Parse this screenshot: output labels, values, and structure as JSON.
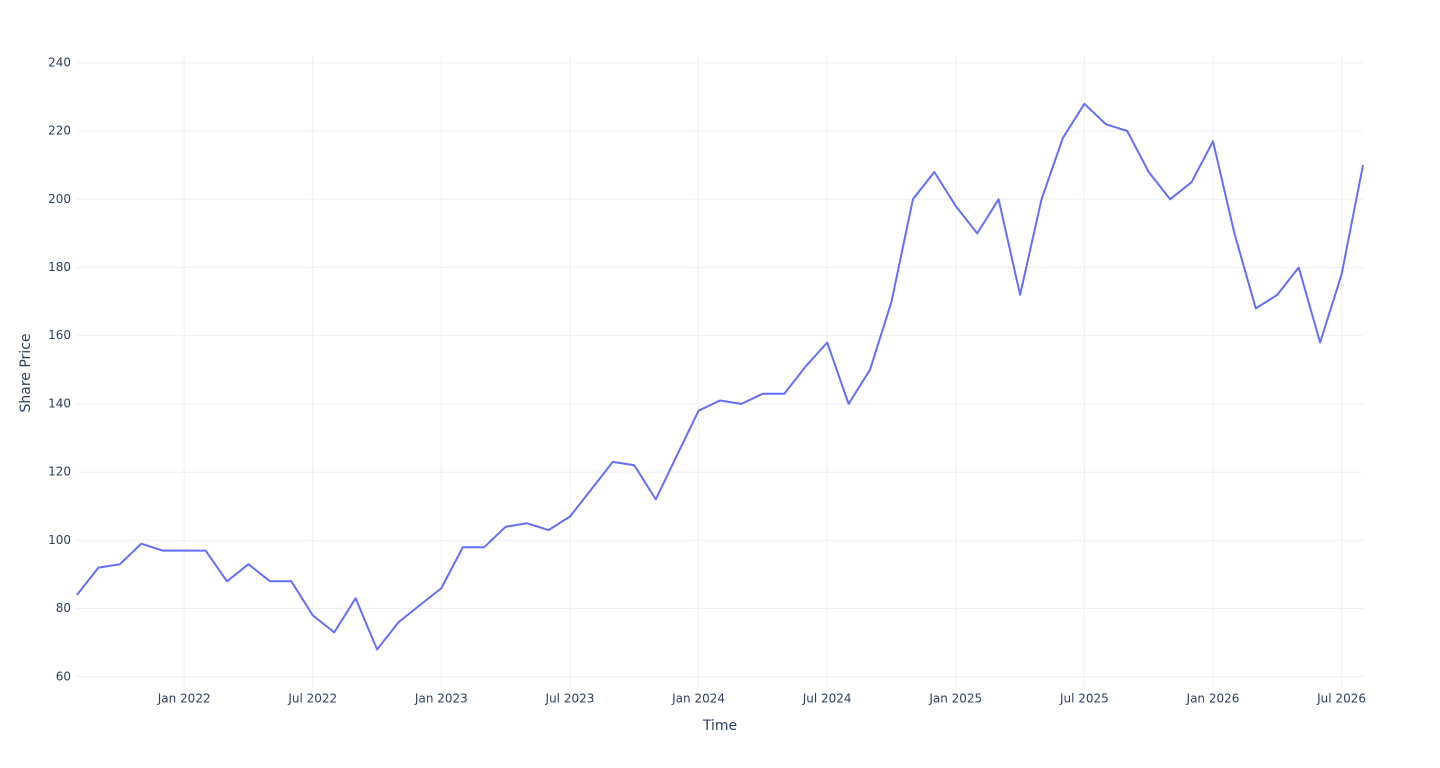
{
  "chart_data": {
    "type": "line",
    "x_label": "Time",
    "y_label": "Share Price",
    "x": [
      "2021-08",
      "2021-09",
      "2021-10",
      "2021-11",
      "2021-12",
      "2022-01",
      "2022-02",
      "2022-03",
      "2022-04",
      "2022-05",
      "2022-06",
      "2022-07",
      "2022-08",
      "2022-09",
      "2022-10",
      "2022-11",
      "2022-12",
      "2023-01",
      "2023-02",
      "2023-03",
      "2023-04",
      "2023-05",
      "2023-06",
      "2023-07",
      "2023-08",
      "2023-09",
      "2023-10",
      "2023-11",
      "2023-12",
      "2024-01",
      "2024-02",
      "2024-03",
      "2024-04",
      "2024-05",
      "2024-06",
      "2024-07",
      "2024-08",
      "2024-09",
      "2024-10",
      "2024-11",
      "2024-12",
      "2025-01",
      "2025-02",
      "2025-03",
      "2025-04",
      "2025-05",
      "2025-06",
      "2025-07",
      "2025-08",
      "2025-09",
      "2025-10",
      "2025-11",
      "2025-12",
      "2026-01",
      "2026-02",
      "2026-03",
      "2026-04",
      "2026-05",
      "2026-06",
      "2026-07",
      "2026-08"
    ],
    "series": [
      {
        "name": "Share Price",
        "color": "#636efa",
        "values": [
          84,
          92,
          93,
          99,
          97,
          97,
          97,
          88,
          93,
          88,
          88,
          78,
          73,
          83,
          68,
          76,
          81,
          86,
          98,
          98,
          104,
          105,
          103,
          107,
          115,
          123,
          122,
          112,
          125,
          138,
          141,
          140,
          143,
          143,
          151,
          158,
          140,
          150,
          170,
          200,
          208,
          198,
          190,
          200,
          172,
          200,
          218,
          228,
          222,
          220,
          208,
          200,
          205,
          217,
          190,
          168,
          172,
          180,
          158,
          178,
          210
        ]
      }
    ],
    "xlim": [
      "2021-08",
      "2026-08"
    ],
    "xticks": [
      {
        "value": "2022-01",
        "label": "Jan 2022"
      },
      {
        "value": "2022-07",
        "label": "Jul 2022"
      },
      {
        "value": "2023-01",
        "label": "Jan 2023"
      },
      {
        "value": "2023-07",
        "label": "Jul 2023"
      },
      {
        "value": "2024-01",
        "label": "Jan 2024"
      },
      {
        "value": "2024-07",
        "label": "Jul 2024"
      },
      {
        "value": "2025-01",
        "label": "Jan 2025"
      },
      {
        "value": "2025-07",
        "label": "Jul 2025"
      },
      {
        "value": "2026-01",
        "label": "Jan 2026"
      },
      {
        "value": "2026-07",
        "label": "Jul 2026"
      }
    ],
    "ylim": [
      57,
      242
    ],
    "yticks": [
      60,
      80,
      100,
      120,
      140,
      160,
      180,
      200,
      220,
      240
    ],
    "grid": true
  }
}
